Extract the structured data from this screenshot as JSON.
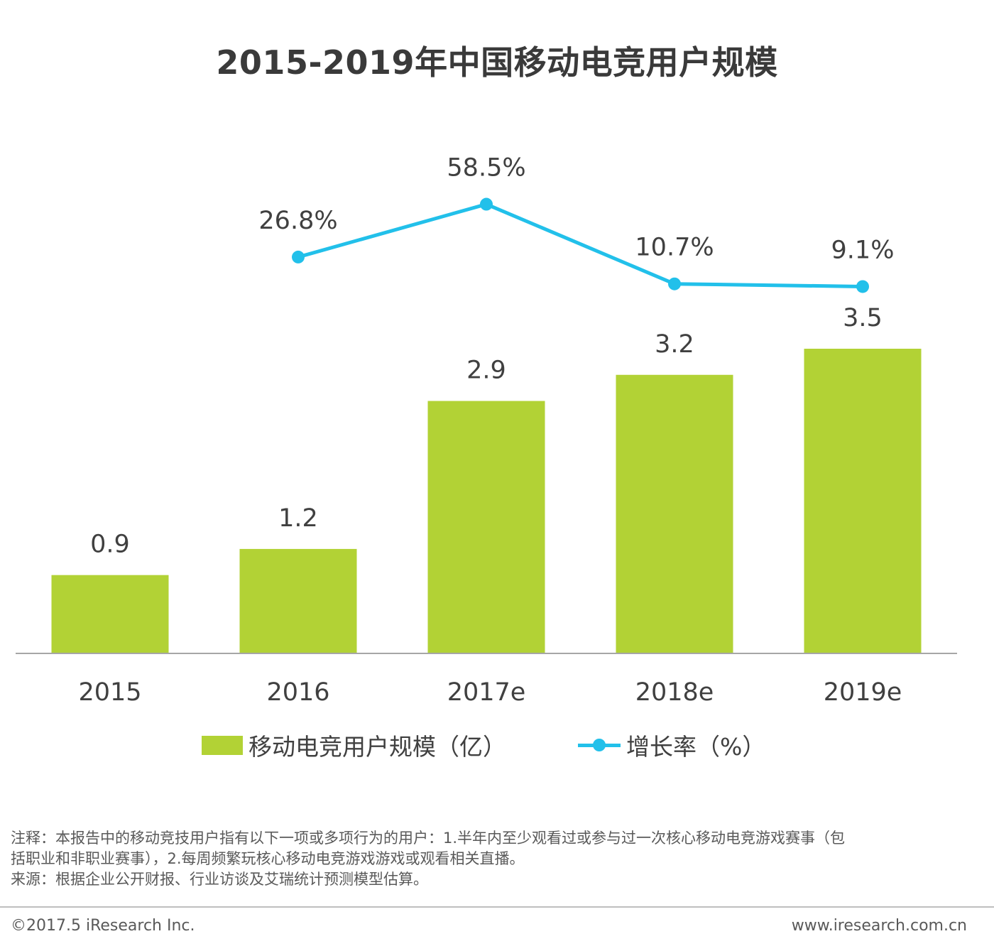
{
  "chart_data": {
    "type": "bar",
    "title": "2015-2019年中国移动电竞用户规模",
    "categories": [
      "2015",
      "2016",
      "2017e",
      "2018e",
      "2019e"
    ],
    "series": [
      {
        "name": "移动电竞用户规模（亿）",
        "type": "bar",
        "values": [
          0.9,
          1.2,
          2.9,
          3.2,
          3.5
        ],
        "labels": [
          "0.9",
          "1.2",
          "2.9",
          "3.2",
          "3.5"
        ],
        "color": "#b2d235"
      },
      {
        "name": "增长率（%）",
        "type": "line",
        "values": [
          null,
          26.8,
          58.5,
          10.7,
          9.1
        ],
        "labels": [
          "",
          "26.8%",
          "58.5%",
          "10.7%",
          "9.1%"
        ],
        "color": "#22c0ea"
      }
    ],
    "xlabel": "",
    "ylabel": "",
    "ylim": [
      0,
      3.5
    ],
    "grid": false,
    "legend": "bottom"
  },
  "notes": {
    "line1": "注释：本报告中的移动竞技用户指有以下一项或多项行为的用户：1.半年内至少观看过或参与过一次核心移动电竞游戏赛事（包",
    "line2": "括职业和非职业赛事），2.每周频繁玩核心移动电竞游戏游戏或观看相关直播。",
    "line3": "来源：根据企业公开财报、行业访谈及艾瑞统计预测模型估算。"
  },
  "footer": {
    "copyright": "©2017.5 iResearch Inc.",
    "website": "www.iresearch.com.cn"
  }
}
